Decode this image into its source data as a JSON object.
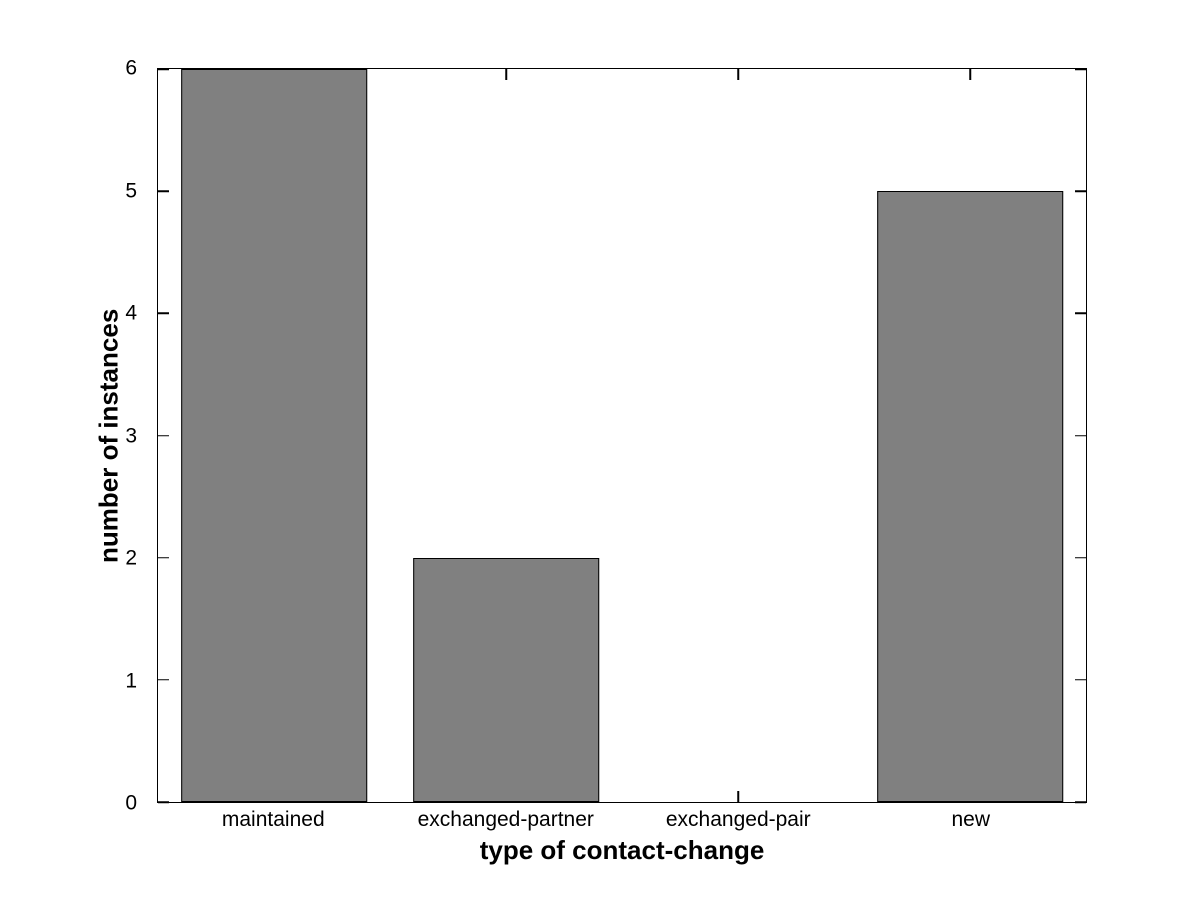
{
  "chart_data": {
    "type": "bar",
    "categories": [
      "maintained",
      "exchanged-partner",
      "exchanged-pair",
      "new"
    ],
    "values": [
      6,
      2,
      0,
      5
    ],
    "title": "",
    "xlabel": "type of contact-change",
    "ylabel": "number of instances",
    "ylim": [
      0,
      6
    ],
    "yticks": [
      0,
      1,
      2,
      3,
      4,
      5,
      6
    ],
    "bar_width_fraction": 0.8,
    "grid": "off",
    "legend": "none",
    "colors": {
      "bar_fill": "#808080",
      "bar_edge": "#000000",
      "axis": "#000000",
      "background": "#ffffff",
      "text": "#000000"
    }
  }
}
